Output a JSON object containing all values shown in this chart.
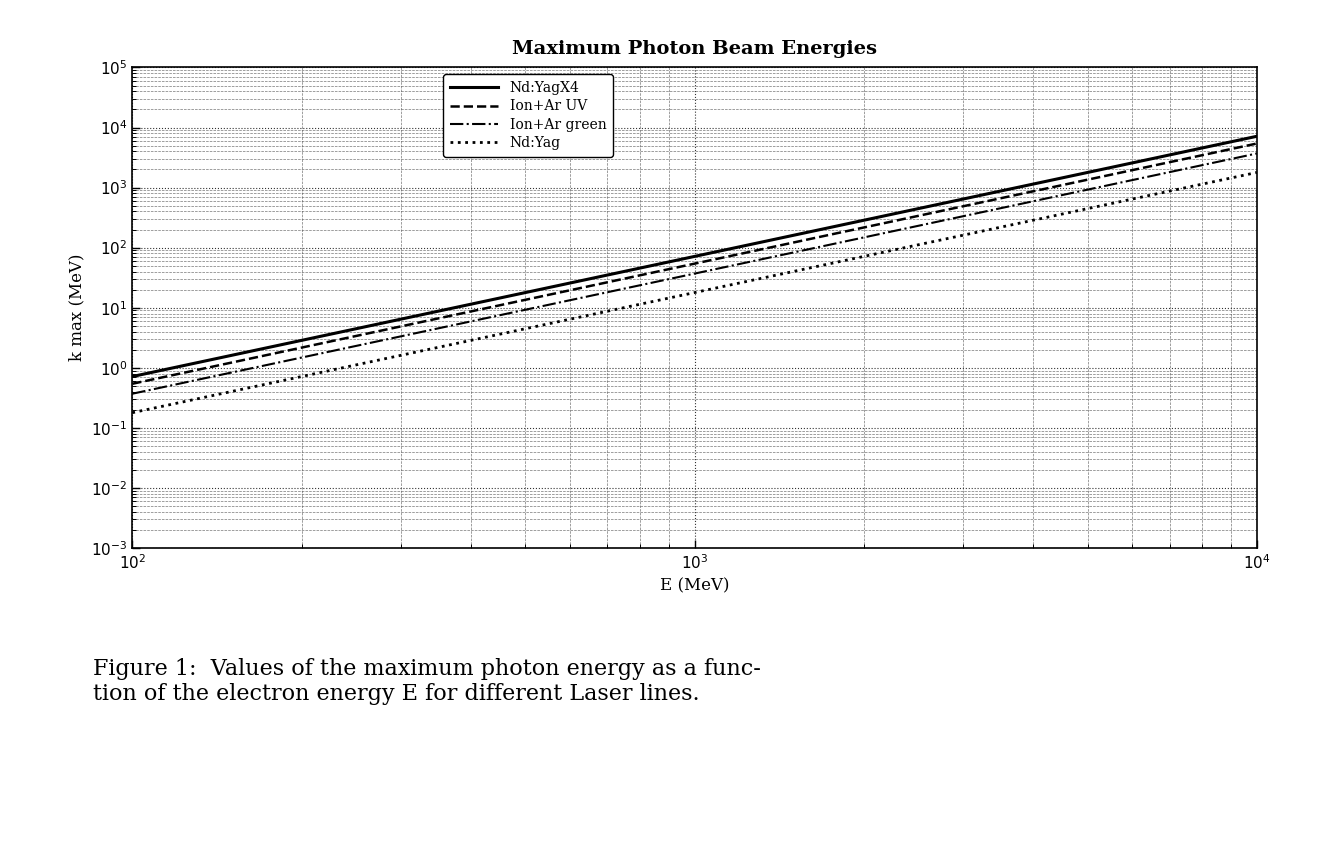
{
  "title": "Maximum Photon Beam Energies",
  "xlabel": "E (MeV)",
  "ylabel": "k max (MeV)",
  "xlim": [
    100,
    10000
  ],
  "ylim": [
    0.001,
    100000.0
  ],
  "lines": [
    {
      "label": "Nd:YagX4",
      "style": "-",
      "color": "#000000",
      "linewidth": 2.2,
      "wavelength_nm": 266
    },
    {
      "label": "Ion+Ar UV",
      "style": "--",
      "color": "#000000",
      "linewidth": 1.8,
      "wavelength_nm": 351
    },
    {
      "label": "Ion+Ar green",
      "style": "-.",
      "color": "#000000",
      "linewidth": 1.5,
      "wavelength_nm": 514
    },
    {
      "label": "Nd:Yag",
      "style": ":",
      "color": "#000000",
      "linewidth": 2.0,
      "wavelength_nm": 1064
    }
  ],
  "caption": "Figure 1:  Values of the maximum photon energy as a func-\ntion of the electron energy E for different Laser lines.",
  "title_fontsize": 14,
  "label_fontsize": 12,
  "tick_fontsize": 11,
  "legend_fontsize": 10,
  "caption_fontsize": 16,
  "fig_width": 13.23,
  "fig_height": 8.43,
  "dpi": 100
}
